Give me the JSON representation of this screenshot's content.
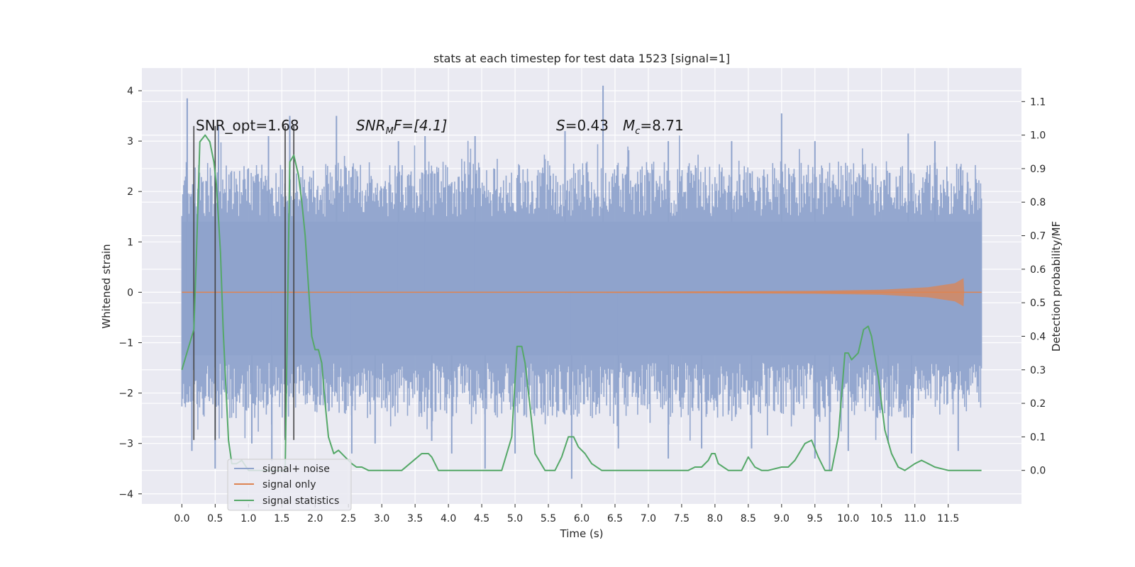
{
  "chart_data": {
    "type": "line",
    "title": "stats at each timestep for test data 1523 [signal=1]",
    "xlabel": "Time (s)",
    "ylabel_left": "Whitened strain",
    "ylabel_right": "Detection probability/MF",
    "xlim": [
      -0.6,
      12.6
    ],
    "ylim_left": [
      -4.2,
      4.45
    ],
    "ylim_right": [
      -0.1,
      1.2
    ],
    "x_ticks": [
      "0.0",
      "0.5",
      "1.0",
      "1.5",
      "2.0",
      "2.5",
      "3.0",
      "3.5",
      "4.0",
      "4.5",
      "5.0",
      "5.5",
      "6.0",
      "6.5",
      "7.0",
      "7.5",
      "8.0",
      "8.5",
      "9.0",
      "9.5",
      "10.0",
      "10.5",
      "11.0",
      "11.5"
    ],
    "y_ticks_left": [
      "4",
      "3",
      "2",
      "1",
      "0",
      "−1",
      "−2",
      "−3",
      "−4"
    ],
    "y_ticks_right": [
      "1.1",
      "1.0",
      "0.9",
      "0.8",
      "0.7",
      "0.6",
      "0.5",
      "0.4",
      "0.3",
      "0.2",
      "0.1",
      "0.0"
    ],
    "grid": true,
    "legend_placement": "lower-left",
    "annotations": {
      "snr_opt": "SNR_opt=1.68",
      "snr_mf": "SNR",
      "snr_mf_sub": "M",
      "snr_mf_tail": "F=[4.1]",
      "s_label": "S",
      "s_value": "=0.43",
      "mc_label": "M",
      "mc_sub": "c",
      "mc_value": "=8.71"
    },
    "series": [
      {
        "name": "signal+ noise",
        "color": "#8fa3cc",
        "axis": "left",
        "x_range": [
          0.0,
          12.0
        ],
        "band_core": [
          -1.25,
          1.4
        ],
        "band_typical_extent": [
          -2.4,
          2.5
        ],
        "peaks_up": [
          [
            0.08,
            3.85
          ],
          [
            0.55,
            3.3
          ],
          [
            1.3,
            3.1
          ],
          [
            1.62,
            3.5
          ],
          [
            2.32,
            3.5
          ],
          [
            3.25,
            3.0
          ],
          [
            3.65,
            3.1
          ],
          [
            4.4,
            3.1
          ],
          [
            5.75,
            3.2
          ],
          [
            6.32,
            4.1
          ],
          [
            7.3,
            3.0
          ],
          [
            8.25,
            3.0
          ],
          [
            9.0,
            3.55
          ],
          [
            9.5,
            3.0
          ],
          [
            10.9,
            3.15
          ],
          [
            11.3,
            3.0
          ]
        ],
        "peaks_down": [
          [
            0.15,
            -3.15
          ],
          [
            0.5,
            -3.5
          ],
          [
            1.05,
            -3.0
          ],
          [
            1.35,
            -3.35
          ],
          [
            2.55,
            -3.2
          ],
          [
            2.9,
            -3.0
          ],
          [
            3.75,
            -2.95
          ],
          [
            4.05,
            -3.2
          ],
          [
            4.55,
            -3.5
          ],
          [
            5.0,
            -3.2
          ],
          [
            5.85,
            -3.7
          ],
          [
            6.55,
            -3.1
          ],
          [
            7.3,
            -3.3
          ],
          [
            7.8,
            -3.1
          ],
          [
            8.55,
            -3.1
          ],
          [
            9.5,
            -3.3
          ],
          [
            9.72,
            -3.55
          ],
          [
            10.0,
            -3.15
          ],
          [
            10.6,
            -3.0
          ],
          [
            10.95,
            -3.2
          ],
          [
            11.65,
            -3.15
          ]
        ]
      },
      {
        "name": "signal only",
        "color": "#dd8452",
        "axis": "left",
        "x": [
          0.0,
          6.0,
          8.0,
          9.5,
          10.5,
          11.2,
          11.6,
          11.73,
          11.74,
          12.0
        ],
        "envelope": [
          0.0,
          0.01,
          0.02,
          0.03,
          0.05,
          0.1,
          0.18,
          0.28,
          0.0,
          0.0
        ]
      },
      {
        "name": "signal statistics",
        "color": "#55a868",
        "axis": "right",
        "x": [
          0.0,
          0.12,
          0.18,
          0.22,
          0.27,
          0.35,
          0.42,
          0.48,
          0.52,
          0.58,
          0.62,
          0.66,
          0.7,
          0.75,
          0.82,
          0.9,
          1.0,
          1.2,
          1.4,
          1.5,
          1.55,
          1.62,
          1.68,
          1.75,
          1.8,
          1.85,
          1.9,
          1.95,
          2.0,
          2.05,
          2.1,
          2.15,
          2.2,
          2.28,
          2.35,
          2.45,
          2.55,
          2.62,
          2.7,
          2.8,
          3.0,
          3.3,
          3.6,
          3.7,
          3.75,
          3.85,
          3.9,
          4.0,
          4.2,
          4.3,
          4.4,
          4.6,
          4.8,
          4.95,
          5.03,
          5.1,
          5.15,
          5.22,
          5.3,
          5.45,
          5.6,
          5.7,
          5.8,
          5.88,
          5.95,
          6.05,
          6.15,
          6.3,
          6.6,
          7.2,
          7.6,
          7.7,
          7.8,
          7.9,
          7.95,
          8.0,
          8.05,
          8.2,
          8.4,
          8.45,
          8.5,
          8.6,
          8.7,
          8.8,
          9.0,
          9.1,
          9.2,
          9.35,
          9.45,
          9.55,
          9.65,
          9.75,
          9.85,
          9.95,
          10.0,
          10.05,
          10.15,
          10.23,
          10.3,
          10.35,
          10.45,
          10.55,
          10.65,
          10.75,
          10.85,
          11.0,
          11.1,
          11.2,
          11.3,
          11.5,
          11.7,
          12.0
        ],
        "y": [
          0.3,
          0.38,
          0.42,
          0.65,
          0.98,
          1.0,
          0.98,
          0.92,
          0.85,
          0.65,
          0.42,
          0.25,
          0.09,
          0.02,
          0.02,
          0.03,
          0.0,
          0.0,
          0.0,
          0.0,
          0.0,
          0.92,
          0.94,
          0.88,
          0.8,
          0.7,
          0.55,
          0.4,
          0.36,
          0.36,
          0.32,
          0.2,
          0.1,
          0.05,
          0.06,
          0.04,
          0.02,
          0.01,
          0.01,
          0.0,
          0.0,
          0.0,
          0.05,
          0.05,
          0.04,
          0.0,
          0.0,
          0.0,
          0.0,
          0.0,
          0.0,
          0.0,
          0.0,
          0.1,
          0.37,
          0.37,
          0.32,
          0.2,
          0.05,
          0.0,
          0.0,
          0.04,
          0.1,
          0.1,
          0.07,
          0.05,
          0.02,
          0.0,
          0.0,
          0.0,
          0.0,
          0.01,
          0.01,
          0.03,
          0.05,
          0.05,
          0.02,
          0.0,
          0.0,
          0.02,
          0.04,
          0.01,
          0.0,
          0.0,
          0.01,
          0.01,
          0.03,
          0.08,
          0.09,
          0.04,
          0.0,
          0.0,
          0.1,
          0.35,
          0.35,
          0.33,
          0.35,
          0.42,
          0.43,
          0.4,
          0.28,
          0.12,
          0.05,
          0.01,
          0.0,
          0.02,
          0.03,
          0.02,
          0.01,
          0.0,
          0.0,
          0.0
        ],
        "vertical_markers": [
          0.18,
          0.5,
          1.55,
          1.68
        ]
      }
    ]
  }
}
